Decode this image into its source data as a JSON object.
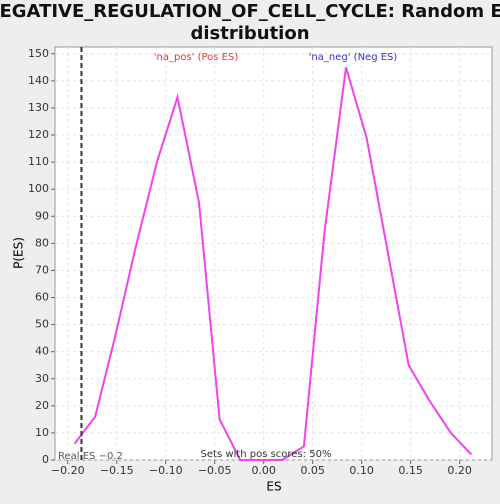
{
  "chart_data": {
    "type": "line",
    "title": "NEGATIVE_REGULATION_OF_CELL_CYCLE: Random ES distribution",
    "x_label": "ES",
    "y_label": "P(ES)",
    "x": [
      -0.193,
      -0.172,
      -0.152,
      -0.131,
      -0.109,
      -0.088,
      -0.066,
      -0.045,
      -0.024,
      -0.002,
      0.019,
      0.041,
      0.062,
      0.084,
      0.105,
      0.126,
      0.148,
      0.169,
      0.191,
      0.212
    ],
    "series": [
      {
        "name": "P(ES)",
        "color": "#ee44ee",
        "values": [
          6,
          16,
          45,
          78,
          110,
          134,
          95,
          15,
          0,
          0,
          0,
          5,
          84,
          145,
          119,
          78,
          35,
          22,
          10,
          2
        ]
      }
    ],
    "xlim": [
      -0.213,
      0.233
    ],
    "ylim": [
      0,
      152.5
    ],
    "xticks": [
      {
        "value": -0.2,
        "label": "−0.20"
      },
      {
        "value": -0.15,
        "label": "−0.15"
      },
      {
        "value": -0.1,
        "label": "−0.10"
      },
      {
        "value": -0.05,
        "label": "−0.05"
      },
      {
        "value": 0,
        "label": "0.00"
      },
      {
        "value": 0.05,
        "label": "0.05"
      },
      {
        "value": 0.1,
        "label": "0.10"
      },
      {
        "value": 0.15,
        "label": "0.15"
      },
      {
        "value": 0.2,
        "label": "0.20"
      }
    ],
    "yticks": [
      0,
      10,
      20,
      30,
      40,
      50,
      60,
      70,
      80,
      90,
      100,
      110,
      120,
      130,
      140,
      150
    ],
    "grid": true,
    "real_es": {
      "value": -0.186,
      "label": "Real ES −0.2"
    },
    "annotations": [
      {
        "text": "'na_pos' (Pos ES)",
        "color": "#ee3333"
      },
      {
        "text": "'na_neg' (Neg ES)",
        "color": "#3333cc"
      },
      {
        "text": "Sets with pos scores: 50%",
        "color": "#333333"
      }
    ]
  }
}
